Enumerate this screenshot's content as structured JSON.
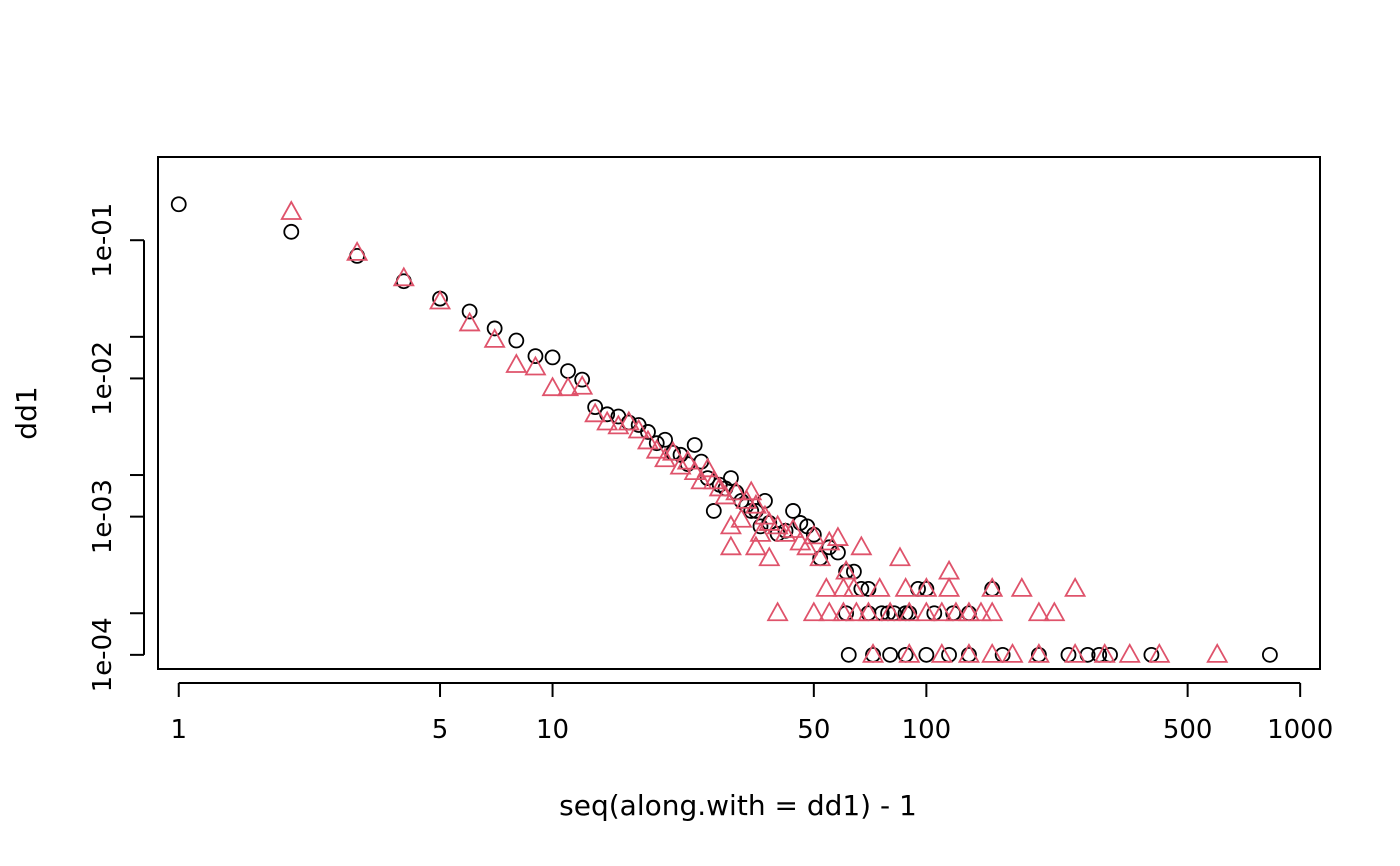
{
  "chart_data": {
    "type": "scatter",
    "title": "",
    "xlabel": "seq(along.with = dd1) - 1",
    "ylabel": "dd1",
    "x_scale": "log",
    "y_scale": "log",
    "xlim": [
      0.88,
      1130
    ],
    "ylim": [
      7.9e-05,
      0.4
    ],
    "x_tick_values": [
      1,
      5,
      10,
      50,
      100,
      500,
      1000
    ],
    "x_tick_labels": [
      "1",
      "5",
      "10",
      "50",
      "100",
      "500",
      "1000"
    ],
    "y_tick_values": [
      0.0001,
      0.001,
      0.01,
      0.1
    ],
    "y_tick_labels": [
      "1e-04",
      "1e-03",
      "1e-02",
      "1e-01"
    ],
    "y_minor_tick_values": [
      0.0002,
      0.002,
      0.02
    ],
    "grid": false,
    "legend": "none",
    "series": [
      {
        "marker": "open-circle",
        "color": "#000000",
        "x": [
          1,
          2,
          3,
          4,
          5,
          6,
          7,
          8,
          9,
          10,
          11,
          12,
          13,
          14,
          15,
          16,
          17,
          18,
          19,
          20,
          21,
          22,
          23,
          24,
          25,
          26,
          27,
          28,
          29,
          30,
          31,
          32,
          33,
          34,
          35,
          36,
          37,
          38,
          40,
          42,
          44,
          46,
          48,
          50,
          52,
          55,
          58,
          61,
          64,
          67,
          70,
          61,
          70,
          76,
          82,
          88,
          95,
          100,
          150,
          79,
          90,
          105,
          118,
          130,
          62,
          72,
          80,
          88,
          100,
          115,
          130,
          160,
          200,
          240,
          270,
          290,
          310,
          400,
          830
        ],
        "y": [
          0.182,
          0.115,
          0.077,
          0.0505,
          0.0378,
          0.0305,
          0.023,
          0.0188,
          0.0145,
          0.0142,
          0.0113,
          0.0098,
          0.0062,
          0.0055,
          0.0053,
          0.0048,
          0.0046,
          0.0041,
          0.0034,
          0.0036,
          0.0029,
          0.0028,
          0.0024,
          0.0033,
          0.0025,
          0.0019,
          0.0011,
          0.0017,
          0.0016,
          0.0019,
          0.0015,
          0.0013,
          0.0012,
          0.0011,
          0.0011,
          0.00085,
          0.0013,
          0.0009,
          0.00075,
          0.00079,
          0.0011,
          0.0009,
          0.00085,
          0.00074,
          0.0005,
          0.0006,
          0.00055,
          0.0004,
          0.0004,
          0.0003,
          0.0003,
          0.0002,
          0.0002,
          0.0002,
          0.0002,
          0.0002,
          0.0003,
          0.0003,
          0.0003,
          0.0002,
          0.0002,
          0.0002,
          0.0002,
          0.0002,
          0.0001,
          0.0001,
          0.0001,
          0.0001,
          0.0001,
          0.0001,
          0.0001,
          0.0001,
          0.0001,
          0.0001,
          0.0001,
          0.0001,
          0.0001,
          0.0001,
          0.0001
        ]
      },
      {
        "marker": "open-triangle",
        "color": "#DF536B",
        "x": [
          2,
          3,
          4,
          5,
          6,
          7,
          8,
          9,
          10,
          11,
          12,
          13,
          14,
          15,
          16,
          17,
          18,
          19,
          20,
          21,
          22,
          23,
          24,
          25,
          26,
          27,
          28,
          29,
          30,
          31,
          32,
          33,
          34,
          35,
          36,
          37,
          38,
          40,
          42,
          44,
          46,
          48,
          50,
          52,
          55,
          58,
          61,
          64,
          67,
          30,
          35,
          40,
          50,
          55,
          60,
          65,
          70,
          80,
          90,
          100,
          110,
          120,
          130,
          140,
          150,
          200,
          220,
          38,
          54,
          60,
          75,
          88,
          100,
          115,
          150,
          180,
          250,
          85,
          115,
          72,
          90,
          110,
          130,
          150,
          170,
          200,
          250,
          300,
          350,
          420,
          600
        ],
        "y": [
          0.16,
          0.081,
          0.053,
          0.036,
          0.025,
          0.019,
          0.0125,
          0.012,
          0.0085,
          0.0085,
          0.0087,
          0.0055,
          0.0048,
          0.0045,
          0.0048,
          0.0042,
          0.0035,
          0.003,
          0.0026,
          0.0029,
          0.0023,
          0.0025,
          0.0021,
          0.0018,
          0.0022,
          0.0018,
          0.0016,
          0.0014,
          0.00085,
          0.0015,
          0.00095,
          0.0013,
          0.0015,
          0.0012,
          0.00075,
          0.001,
          0.0009,
          0.00085,
          0.00075,
          0.0008,
          0.00065,
          0.0006,
          0.00072,
          0.0005,
          0.00065,
          0.0007,
          0.0004,
          0.0003,
          0.0006,
          0.0006,
          0.0006,
          0.0002,
          0.0002,
          0.0002,
          0.0002,
          0.0002,
          0.0002,
          0.0002,
          0.0002,
          0.0002,
          0.0002,
          0.0002,
          0.0002,
          0.0002,
          0.0002,
          0.0002,
          0.0002,
          0.0005,
          0.0003,
          0.0003,
          0.0003,
          0.0003,
          0.0003,
          0.0003,
          0.0003,
          0.0003,
          0.0003,
          0.0005,
          0.0004,
          0.0001,
          0.0001,
          0.0001,
          0.0001,
          0.0001,
          0.0001,
          0.0001,
          0.0001,
          0.0001,
          0.0001,
          0.0001,
          0.0001
        ]
      }
    ]
  }
}
